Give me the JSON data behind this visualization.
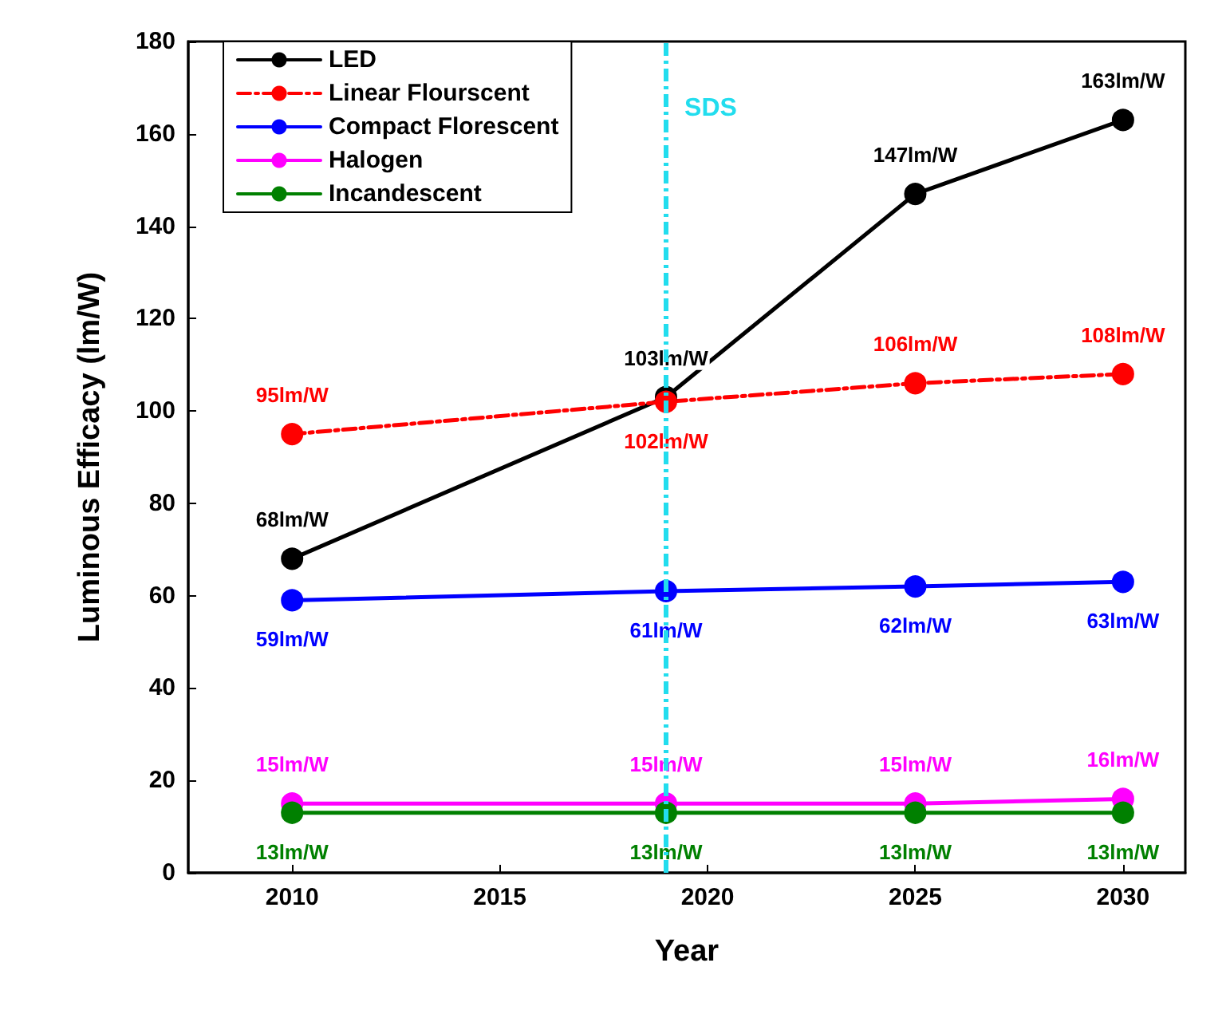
{
  "chart_data": {
    "type": "line",
    "xlabel": "Year",
    "ylabel": "Luminous Efficacy (lm/W)",
    "x": [
      2010,
      2019,
      2025,
      2030
    ],
    "series": [
      {
        "name": "LED",
        "color": "#000000",
        "values": [
          68,
          103,
          147,
          163
        ],
        "value_labels": [
          "68lm/W",
          "103lm/W",
          "147lm/W",
          "163lm/W"
        ]
      },
      {
        "name": "Linear Flourscent",
        "color": "#ff0000",
        "line_style": "dashed",
        "values": [
          95,
          102,
          106,
          108
        ],
        "value_labels": [
          "95lm/W",
          "102lm/W",
          "106lm/W",
          "108lm/W"
        ]
      },
      {
        "name": "Compact Florescent",
        "color": "#0000ff",
        "values": [
          59,
          61,
          62,
          63
        ],
        "value_labels": [
          "59lm/W",
          "61lm/W",
          "62lm/W",
          "63lm/W"
        ]
      },
      {
        "name": "Halogen",
        "color": "#ff00ff",
        "values": [
          15,
          15,
          15,
          16
        ],
        "value_labels": [
          "15lm/W",
          "15lm/W",
          "15lm/W",
          "16lm/W"
        ]
      },
      {
        "name": "Incandescent",
        "color": "#008000",
        "values": [
          13,
          13,
          13,
          13
        ],
        "value_labels": [
          "13lm/W",
          "13lm/W",
          "13lm/W",
          "13lm/W"
        ]
      }
    ],
    "xlim": [
      2007.5,
      2031.5
    ],
    "xticks": [
      2010,
      2015,
      2020,
      2025,
      2030
    ],
    "ylim": [
      0,
      180
    ],
    "yticks": [
      0,
      20,
      40,
      60,
      80,
      100,
      120,
      140,
      160,
      180
    ],
    "ref_lines": [
      {
        "axis": "x",
        "value": 2019,
        "label": "SDS",
        "color": "#22ddee",
        "line_style": "dashed"
      }
    ],
    "legend": "top left",
    "grid": false,
    "marker": "circle",
    "line_style": "solid"
  }
}
